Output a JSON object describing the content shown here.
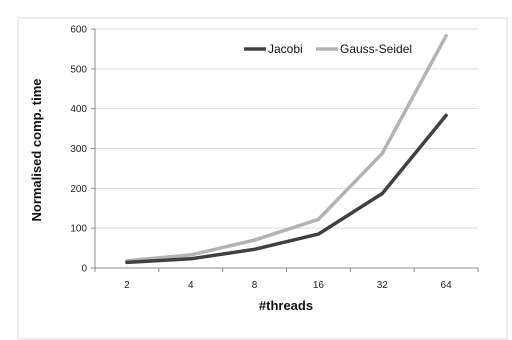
{
  "chart_data": {
    "type": "line",
    "title": "",
    "xlabel": "#threads",
    "ylabel": "Normalised comp. time",
    "categories": [
      "2",
      "4",
      "8",
      "16",
      "32",
      "64"
    ],
    "ylim": [
      0,
      600
    ],
    "yticks": [
      0,
      100,
      200,
      300,
      400,
      500,
      600
    ],
    "grid": true,
    "legend_position": "top-right",
    "series": [
      {
        "name": "Jacobi",
        "color": "#404040",
        "values": [
          14,
          23,
          47,
          85,
          187,
          383
        ]
      },
      {
        "name": "Gauss-Seidel",
        "color": "#b3b3b3",
        "values": [
          18,
          33,
          70,
          122,
          288,
          583
        ]
      }
    ]
  }
}
